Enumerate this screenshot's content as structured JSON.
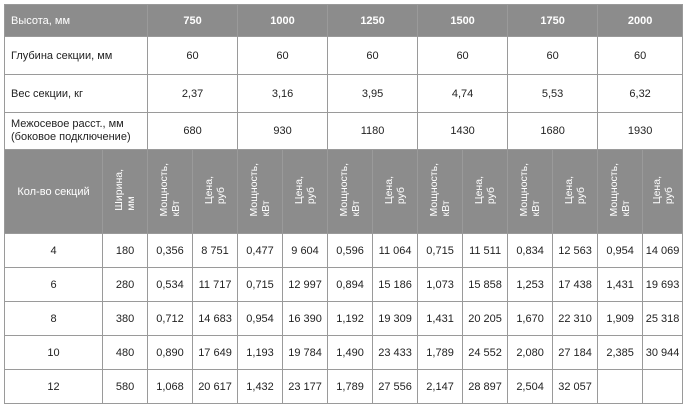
{
  "header": {
    "label": "Высота, мм",
    "heights": [
      "750",
      "1000",
      "1250",
      "1500",
      "1750",
      "2000"
    ]
  },
  "depth": {
    "label": "Глубина секции, мм",
    "values": [
      "60",
      "60",
      "60",
      "60",
      "60",
      "60"
    ]
  },
  "weight": {
    "label": "Вес секции, кг",
    "values": [
      "2,37",
      "3,16",
      "3,95",
      "4,74",
      "5,53",
      "6,32"
    ]
  },
  "distance": {
    "label_line1": "Межосевое расст., мм",
    "label_line2": "(боковое подключение)",
    "values": [
      "680",
      "930",
      "1180",
      "1430",
      "1680",
      "1930"
    ]
  },
  "subheader": {
    "sections": "Кол-во секций",
    "width_line1": "Ширина,",
    "width_line2": "мм",
    "power_line1": "Мощность,",
    "power_line2": "кВт",
    "price_line1": "Цена,",
    "price_line2": "руб"
  },
  "rows": [
    {
      "sections": "4",
      "width": "180",
      "cells": [
        "0,356",
        "8 751",
        "0,477",
        "9 604",
        "0,596",
        "11 064",
        "0,715",
        "11 511",
        "0,834",
        "12 563",
        "0,954",
        "14 069"
      ]
    },
    {
      "sections": "6",
      "width": "280",
      "cells": [
        "0,534",
        "11 717",
        "0,715",
        "12 997",
        "0,894",
        "15 186",
        "1,073",
        "15 858",
        "1,253",
        "17 438",
        "1,431",
        "19 693"
      ]
    },
    {
      "sections": "8",
      "width": "380",
      "cells": [
        "0,712",
        "14 683",
        "0,954",
        "16 390",
        "1,192",
        "19 309",
        "1,431",
        "20 205",
        "1,670",
        "22 310",
        "1,909",
        "25 318"
      ]
    },
    {
      "sections": "10",
      "width": "480",
      "cells": [
        "0,890",
        "17 649",
        "1,193",
        "19 784",
        "1,490",
        "23 433",
        "1,789",
        "24 552",
        "2,080",
        "27 184",
        "2,385",
        "30 944"
      ]
    },
    {
      "sections": "12",
      "width": "580",
      "cells": [
        "1,068",
        "20 617",
        "1,432",
        "23 177",
        "1,789",
        "27 556",
        "2,147",
        "28 897",
        "2,504",
        "32 057",
        "",
        ""
      ]
    }
  ]
}
